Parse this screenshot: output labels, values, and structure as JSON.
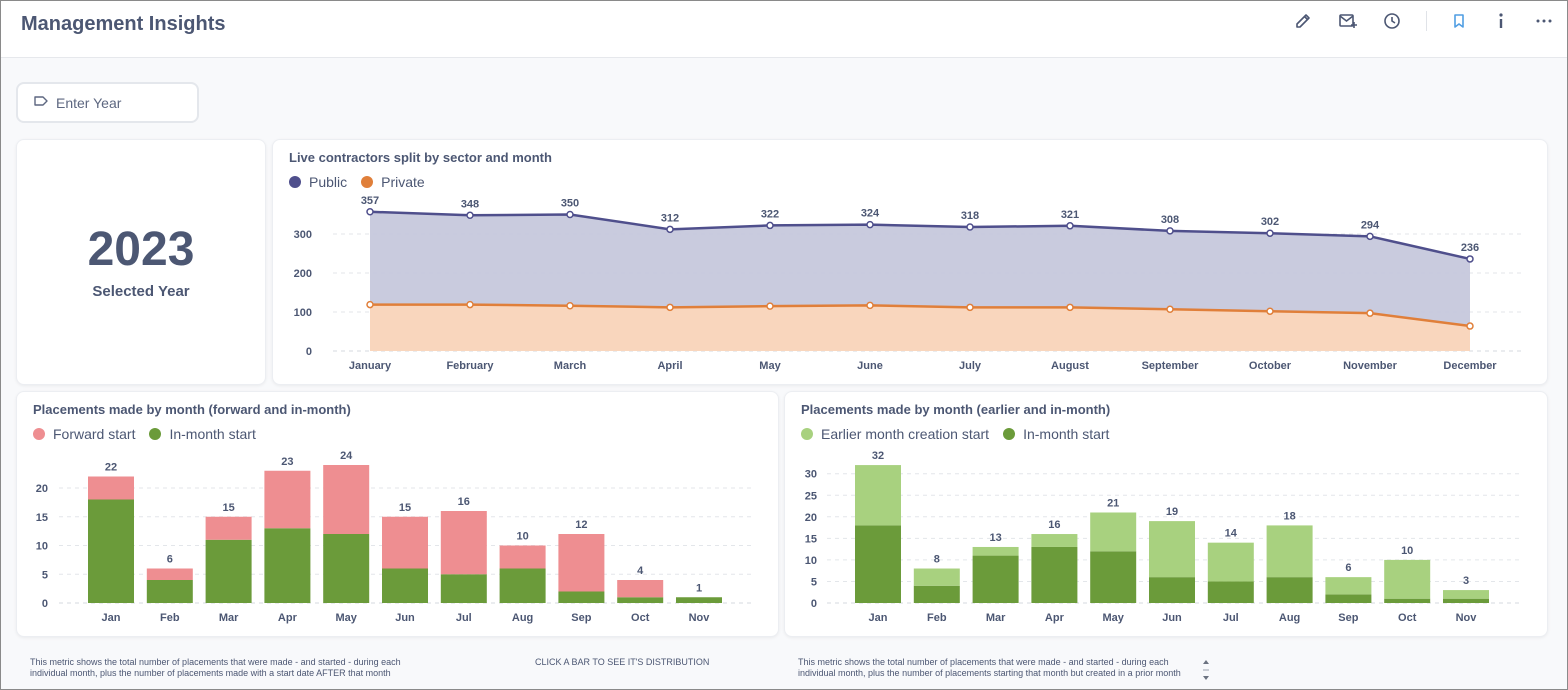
{
  "header": {
    "title": "Management Insights",
    "icons": [
      "edit-icon",
      "subscription-icon",
      "history-icon",
      "bookmark-icon",
      "info-icon",
      "more-icon"
    ]
  },
  "filter": {
    "label": "Enter Year",
    "icon": "tag-icon"
  },
  "scalar": {
    "value": "2023",
    "label": "Selected Year"
  },
  "notes": {
    "left": "This metric shows the total number of placements that were made - and started - during each individual month, plus the number of placements made with a start date AFTER that month",
    "center": "CLICK A BAR TO SEE IT'S DISTRIBUTION",
    "right": "This metric shows the total number of placements that were made - and started - during each individual month, plus the number of placements starting that month but created in a prior month"
  },
  "colors": {
    "public": "#4f4f8c",
    "public_fill": "#c6c8dc",
    "private": "#e07f3a",
    "private_fill": "#f9d6bd",
    "forward": "#ee8e91",
    "inmonth": "#6b9b3a",
    "earlier": "#a8d17f"
  },
  "chart_data": [
    {
      "type": "area",
      "title": "Live contractors split by sector and month",
      "categories": [
        "January",
        "February",
        "March",
        "April",
        "May",
        "June",
        "July",
        "August",
        "September",
        "October",
        "November",
        "December"
      ],
      "series": [
        {
          "name": "Public",
          "values": [
            357,
            348,
            350,
            312,
            322,
            324,
            318,
            321,
            308,
            302,
            294,
            236
          ]
        },
        {
          "name": "Private",
          "values": [
            119,
            119,
            116,
            112,
            115,
            117,
            112,
            112,
            107,
            102,
            97,
            64
          ]
        }
      ],
      "yticks": [
        0,
        100,
        200,
        300
      ],
      "ylim": [
        0,
        380
      ],
      "data_labels": [
        "357",
        "348",
        "350",
        "312",
        "322",
        "324",
        "318",
        "321",
        "308",
        "302",
        "294",
        "236"
      ]
    },
    {
      "type": "bar",
      "stacked": true,
      "title": "Placements made by month (forward and in-month)",
      "categories": [
        "Jan",
        "Feb",
        "Mar",
        "Apr",
        "May",
        "Jun",
        "Jul",
        "Aug",
        "Sep",
        "Oct",
        "Nov"
      ],
      "series": [
        {
          "name": "Forward start",
          "values": [
            4,
            2,
            4,
            10,
            12,
            9,
            11,
            4,
            10,
            3,
            0
          ]
        },
        {
          "name": "In-month start",
          "values": [
            18,
            4,
            11,
            13,
            12,
            6,
            5,
            6,
            2,
            1,
            1
          ]
        }
      ],
      "totals": [
        "22",
        "6",
        "15",
        "23",
        "24",
        "15",
        "16",
        "10",
        "12",
        "4",
        "1"
      ],
      "yticks": [
        0,
        5,
        10,
        15,
        20
      ],
      "ylim": [
        0,
        26
      ]
    },
    {
      "type": "bar",
      "stacked": true,
      "title": "Placements made by month (earlier and in-month)",
      "categories": [
        "Jan",
        "Feb",
        "Mar",
        "Apr",
        "May",
        "Jun",
        "Jul",
        "Aug",
        "Sep",
        "Oct",
        "Nov"
      ],
      "series": [
        {
          "name": "Earlier month creation start",
          "values": [
            14,
            4,
            2,
            3,
            9,
            13,
            9,
            12,
            4,
            9,
            2
          ]
        },
        {
          "name": "In-month start",
          "values": [
            18,
            4,
            11,
            13,
            12,
            6,
            5,
            6,
            2,
            1,
            1
          ]
        }
      ],
      "totals": [
        "32",
        "8",
        "13",
        "16",
        "21",
        "19",
        "14",
        "18",
        "6",
        "10",
        "3"
      ],
      "yticks": [
        0,
        5,
        10,
        15,
        20,
        25,
        30
      ],
      "ylim": [
        0,
        33
      ]
    }
  ]
}
